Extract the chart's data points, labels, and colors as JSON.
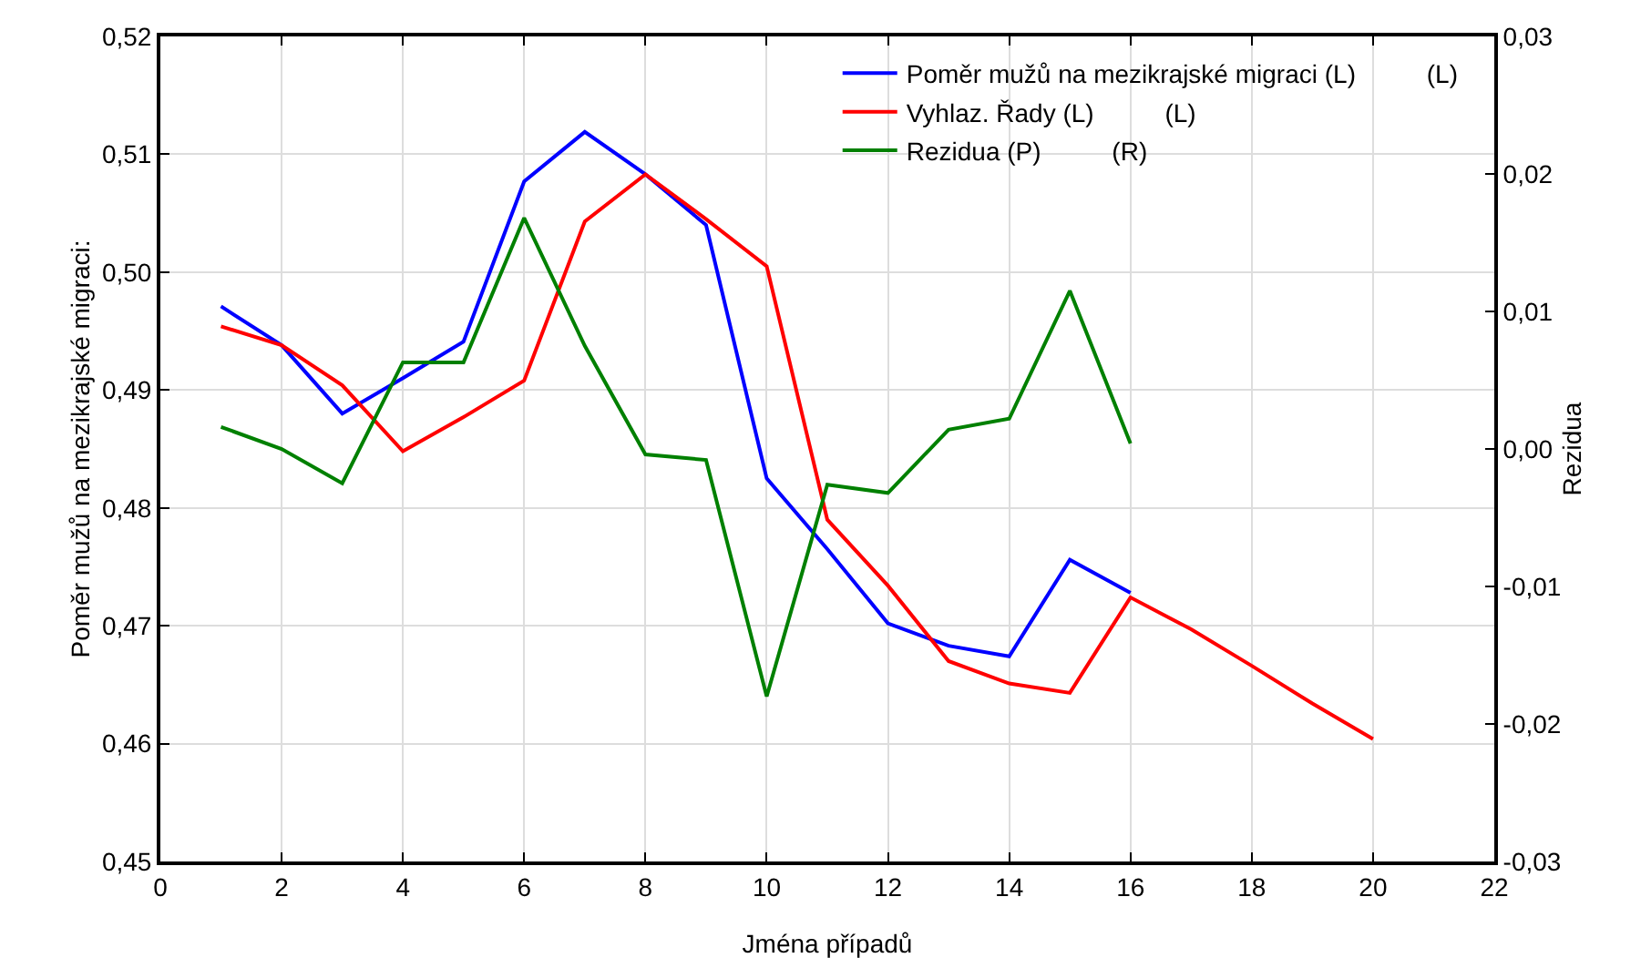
{
  "chart_data": {
    "type": "line",
    "xlabel": "Jména případů",
    "ylabel": "Poměr mužů na mezikrajské migraci:",
    "y2label": "Rezidua",
    "series": [
      {
        "name": "Poměr mužů na mezikrajské migraci (L)          (L)",
        "color": "#0000ff",
        "x": [
          1,
          2,
          3,
          4,
          5,
          6,
          7,
          8,
          9,
          10,
          11,
          12,
          13,
          14,
          15,
          16
        ],
        "values": [
          0.4971,
          0.4938,
          0.488,
          0.491,
          0.4941,
          0.5077,
          0.5119,
          0.5083,
          0.504,
          0.4825,
          0.4765,
          0.4702,
          0.4683,
          0.4674,
          0.4756,
          0.4728
        ]
      },
      {
        "name": "Vyhlaz. Řady (L)          (L)",
        "color": "#ff0000",
        "x": [
          1,
          2,
          3,
          4,
          5,
          6,
          7,
          8,
          9,
          10,
          11,
          12,
          13,
          14,
          15,
          16,
          17,
          18,
          19,
          20
        ],
        "values": [
          0.4954,
          0.4938,
          0.4904,
          0.4848,
          0.4877,
          0.4908,
          0.5043,
          0.5083,
          0.5045,
          0.5005,
          0.479,
          0.4734,
          0.467,
          0.4651,
          0.4643,
          0.4724,
          0.4697,
          0.4666,
          0.4634,
          0.4604
        ]
      },
      {
        "name": "Rezidua (P)          (R)",
        "color": "#008000",
        "axis": "y2",
        "x": [
          1,
          2,
          3,
          4,
          5,
          6,
          7,
          8,
          9,
          10,
          11,
          12,
          13,
          14,
          15,
          16
        ],
        "values": [
          0.0016,
          0.0,
          -0.0025,
          0.0063,
          0.0063,
          0.0168,
          0.0075,
          -0.0004,
          -0.0008,
          -0.018,
          -0.0026,
          -0.0032,
          0.0014,
          0.0022,
          0.0115,
          0.0004
        ]
      }
    ],
    "xlim": [
      0,
      22
    ],
    "xticks": [
      0,
      2,
      4,
      6,
      8,
      10,
      12,
      14,
      16,
      18,
      20,
      22
    ],
    "ylim": [
      0.45,
      0.52
    ],
    "yticks": [
      {
        "value": 0.45,
        "label": "0,45"
      },
      {
        "value": 0.46,
        "label": "0,46"
      },
      {
        "value": 0.47,
        "label": "0,47"
      },
      {
        "value": 0.48,
        "label": "0,48"
      },
      {
        "value": 0.49,
        "label": "0,49"
      },
      {
        "value": 0.5,
        "label": "0,50"
      },
      {
        "value": 0.51,
        "label": "0,51"
      },
      {
        "value": 0.52,
        "label": "0,52"
      }
    ],
    "y2lim": [
      -0.03,
      0.03
    ],
    "y2ticks": [
      {
        "value": -0.03,
        "label": "-0,03"
      },
      {
        "value": -0.02,
        "label": "-0,02"
      },
      {
        "value": -0.01,
        "label": "-0,01"
      },
      {
        "value": 0,
        "label": "0,00"
      },
      {
        "value": 0.01,
        "label": "0,01"
      },
      {
        "value": 0.02,
        "label": "0,02"
      },
      {
        "value": 0.03,
        "label": "0,03"
      }
    ],
    "grid": true,
    "legend": "top right",
    "marker": "none",
    "line_style": "solid"
  }
}
